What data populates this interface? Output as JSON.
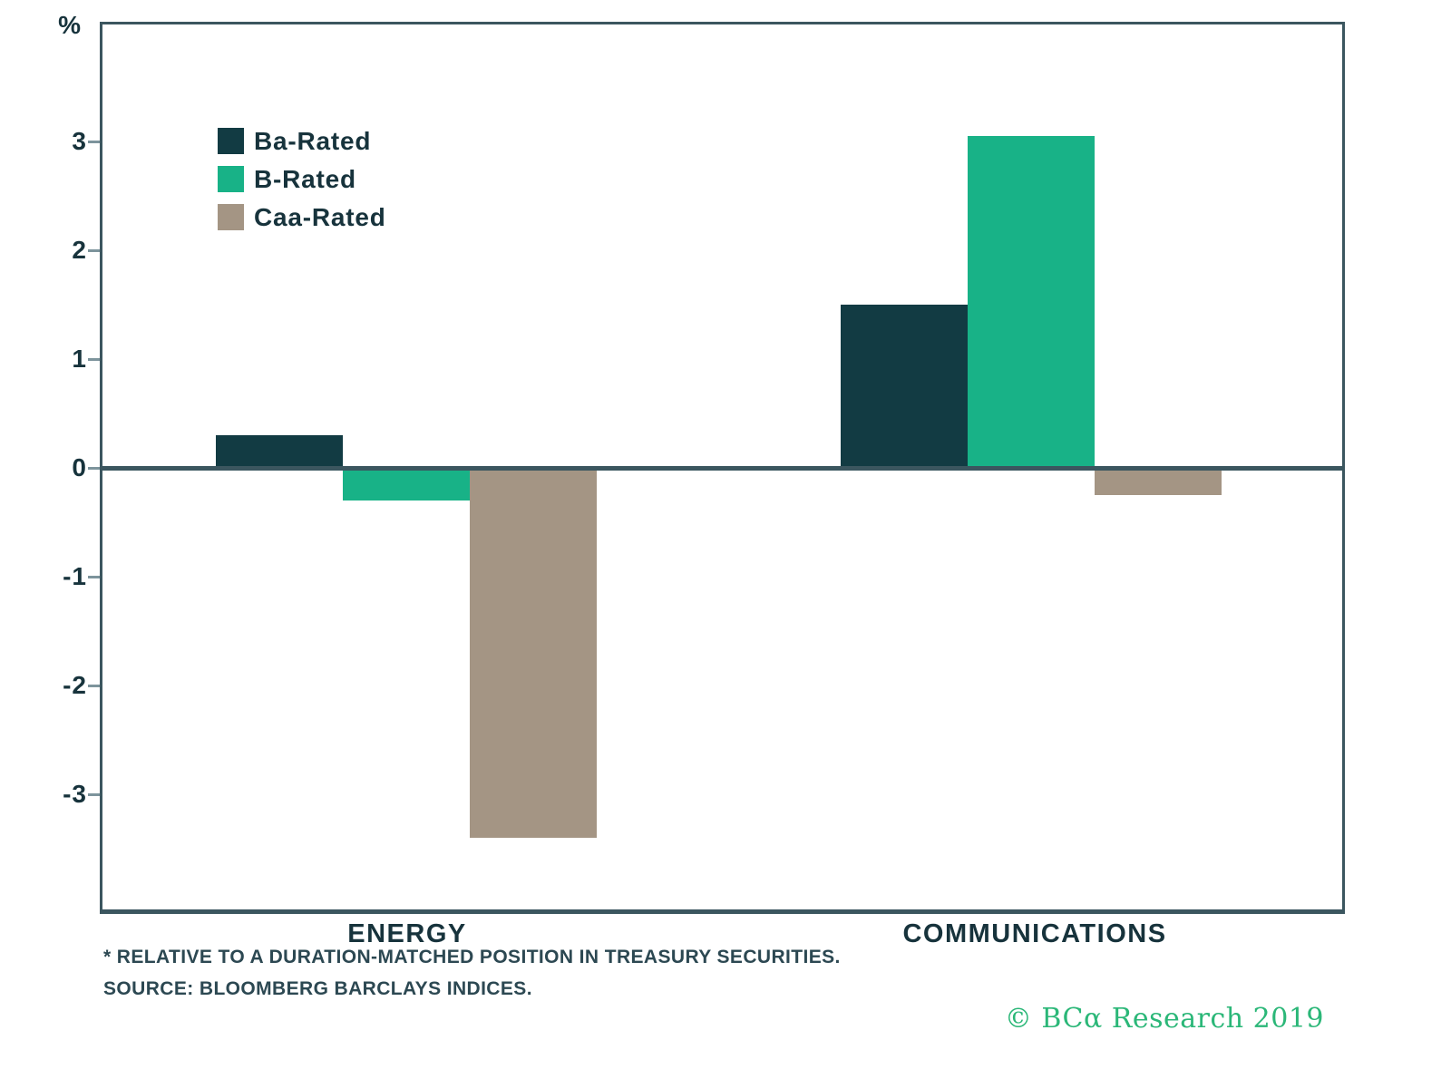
{
  "chart_data": {
    "type": "bar",
    "title": "",
    "unit_label": "%",
    "categories": [
      "ENERGY",
      "COMMUNICATIONS"
    ],
    "series": [
      {
        "name": "Ba-Rated",
        "color": "#123b43",
        "values": [
          0.3,
          1.5
        ]
      },
      {
        "name": "B-Rated",
        "color": "#18b287",
        "values": [
          -0.3,
          3.05
        ]
      },
      {
        "name": "Caa-Rated",
        "color": "#a49584",
        "values": [
          -3.4,
          -0.25
        ]
      }
    ],
    "y_ticks": [
      3,
      2,
      1,
      0,
      -1,
      -2,
      -3
    ],
    "ylim": [
      -4.1,
      4.1
    ],
    "grid": false,
    "legend_position": "top-left",
    "xlabel": "",
    "ylabel": "%"
  },
  "footnotes": [
    "* RELATIVE TO A DURATION-MATCHED POSITION IN TREASURY SECURITIES.",
    "SOURCE: BLOOMBERG BARCLAYS INDICES."
  ],
  "copyright": "© BCα Research 2019",
  "colors": {
    "axis": "#3b565f",
    "text": "#17333c",
    "footnote": "#2c4852",
    "copyright_green": "#2bb778"
  }
}
